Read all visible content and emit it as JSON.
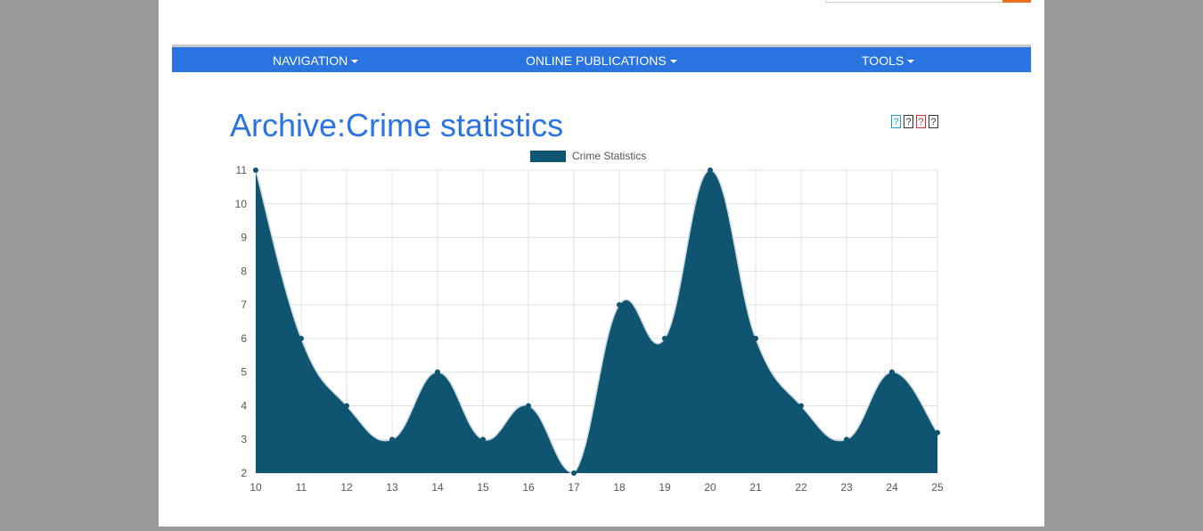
{
  "nav": {
    "items": [
      {
        "label": "NAVIGATION"
      },
      {
        "label": "ONLINE PUBLICATIONS"
      },
      {
        "label": "TOOLS"
      }
    ]
  },
  "page": {
    "title": "Archive:Crime statistics"
  },
  "share_icons": [
    {
      "name": "share-icon",
      "glyph": "?",
      "color": "#1a9ad6"
    },
    {
      "name": "share-icon",
      "glyph": "?",
      "color": "#333333"
    },
    {
      "name": "share-icon",
      "glyph": "?",
      "color": "#d2322d"
    },
    {
      "name": "share-icon",
      "glyph": "?",
      "color": "#333333"
    }
  ],
  "colors": {
    "navbar": "#2a74e2",
    "title": "#2a74e2",
    "series_fill": "#0f5470",
    "search_button": "#e8711c"
  },
  "chart_data": {
    "type": "area",
    "legend_position": "top",
    "grid": true,
    "x": [
      10,
      11,
      12,
      13,
      14,
      15,
      16,
      17,
      18,
      19,
      20,
      21,
      22,
      23,
      24,
      25
    ],
    "series": [
      {
        "name": "Crime Statistics",
        "values": [
          11,
          6,
          4,
          3,
          5,
          3,
          4,
          2,
          7,
          6,
          11,
          6,
          4,
          3,
          5,
          3.2
        ]
      }
    ],
    "xlim": [
      10,
      25
    ],
    "ylim": [
      2,
      11
    ],
    "yticks": [
      2,
      3,
      4,
      5,
      6,
      7,
      8,
      9,
      10,
      11
    ]
  }
}
